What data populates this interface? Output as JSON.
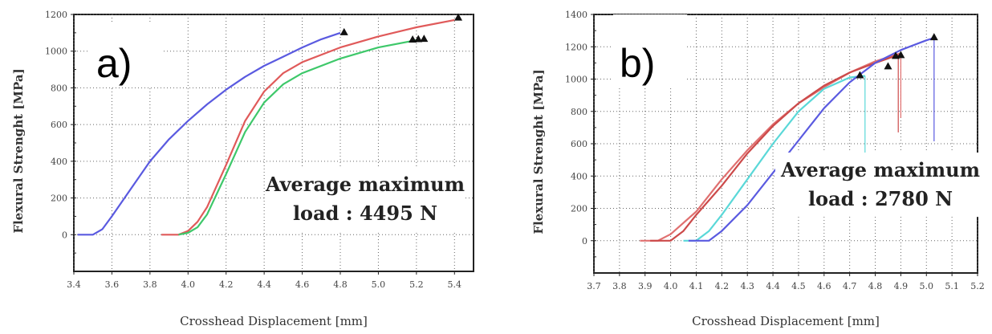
{
  "chart_data": [
    {
      "type": "line",
      "panel_label": "a)",
      "xlabel": "Crosshead Displacement [mm]",
      "ylabel": "Flexural Strenght [MPa]",
      "xlim": [
        3.4,
        5.5
      ],
      "ylim": [
        -200,
        1200
      ],
      "xticks": [
        "3.4",
        "3.6",
        "3.8",
        "4.0",
        "4.2",
        "4.4",
        "4.6",
        "4.8",
        "5.0",
        "5.2",
        "5.4"
      ],
      "yticks": [
        "0",
        "200",
        "400",
        "600",
        "800",
        "1000",
        "1200"
      ],
      "grid": true,
      "annotation": [
        "Average maximum",
        "load : 4495 N"
      ],
      "series": [
        {
          "color": "#5a5ae0",
          "x": [
            3.42,
            3.5,
            3.55,
            3.6,
            3.7,
            3.8,
            3.9,
            4.0,
            4.1,
            4.2,
            4.3,
            4.4,
            4.5,
            4.6,
            4.7,
            4.8
          ],
          "y": [
            0,
            0,
            30,
            100,
            250,
            400,
            520,
            620,
            710,
            790,
            860,
            920,
            970,
            1020,
            1065,
            1100
          ]
        },
        {
          "color": "#e05a5a",
          "x": [
            3.86,
            3.95,
            4.0,
            4.05,
            4.1,
            4.2,
            4.3,
            4.4,
            4.5,
            4.6,
            4.8,
            5.0,
            5.2,
            5.4
          ],
          "y": [
            0,
            0,
            20,
            70,
            150,
            380,
            620,
            780,
            880,
            940,
            1020,
            1080,
            1130,
            1170
          ]
        },
        {
          "color": "#3ec86a",
          "x": [
            3.95,
            4.0,
            4.05,
            4.1,
            4.2,
            4.3,
            4.4,
            4.5,
            4.6,
            4.8,
            5.0,
            5.2
          ],
          "y": [
            0,
            10,
            40,
            110,
            330,
            560,
            720,
            820,
            880,
            960,
            1020,
            1060
          ]
        }
      ],
      "failure_points": [
        [
          4.82,
          1100
        ],
        [
          5.42,
          1180
        ],
        [
          5.18,
          1060
        ],
        [
          5.21,
          1062
        ],
        [
          5.24,
          1064
        ]
      ]
    },
    {
      "type": "line",
      "panel_label": "b)",
      "xlabel": "Crosshead Displacement [mm]",
      "ylabel": "Flexural Strenght [MPa]",
      "xlim": [
        3.7,
        5.2
      ],
      "ylim": [
        -200,
        1400
      ],
      "xticks": [
        "3.7",
        "3.8",
        "3.9",
        "4.0",
        "4.1",
        "4.2",
        "4.3",
        "4.4",
        "4.5",
        "4.6",
        "4.7",
        "4.8",
        "4.9",
        "5.0",
        "5.1",
        "5.2"
      ],
      "yticks": [
        "0",
        "200",
        "400",
        "600",
        "800",
        "1000",
        "1200",
        "1400"
      ],
      "grid": true,
      "annotation": [
        "Average maximum",
        "load : 2780 N"
      ],
      "series": [
        {
          "color": "#e07070",
          "x": [
            3.88,
            3.95,
            4.0,
            4.1,
            4.2,
            4.3,
            4.4,
            4.5,
            4.6,
            4.7,
            4.8,
            4.9
          ],
          "y": [
            0,
            0,
            40,
            180,
            380,
            560,
            720,
            850,
            950,
            1040,
            1110,
            1160
          ]
        },
        {
          "color": "#cc4a4a",
          "x": [
            3.92,
            4.0,
            4.05,
            4.1,
            4.2,
            4.3,
            4.4,
            4.5,
            4.6,
            4.7,
            4.8,
            4.89
          ],
          "y": [
            0,
            0,
            60,
            160,
            340,
            540,
            710,
            850,
            960,
            1040,
            1100,
            1150
          ]
        },
        {
          "color": "#5ad8d8",
          "x": [
            4.05,
            4.1,
            4.15,
            4.2,
            4.3,
            4.4,
            4.5,
            4.6,
            4.7,
            4.76
          ],
          "y": [
            0,
            0,
            60,
            160,
            380,
            600,
            800,
            940,
            1010,
            1020
          ]
        },
        {
          "color": "#5a5ae0",
          "x": [
            4.07,
            4.15,
            4.2,
            4.3,
            4.4,
            4.5,
            4.6,
            4.7,
            4.8,
            4.9,
            5.0,
            5.03
          ],
          "y": [
            0,
            0,
            60,
            220,
            420,
            620,
            820,
            980,
            1100,
            1180,
            1240,
            1255
          ]
        }
      ],
      "failure_points": [
        [
          5.03,
          1255
        ],
        [
          4.74,
          1020
        ],
        [
          4.85,
          1075
        ],
        [
          4.88,
          1140
        ],
        [
          4.9,
          1145
        ]
      ]
    }
  ]
}
